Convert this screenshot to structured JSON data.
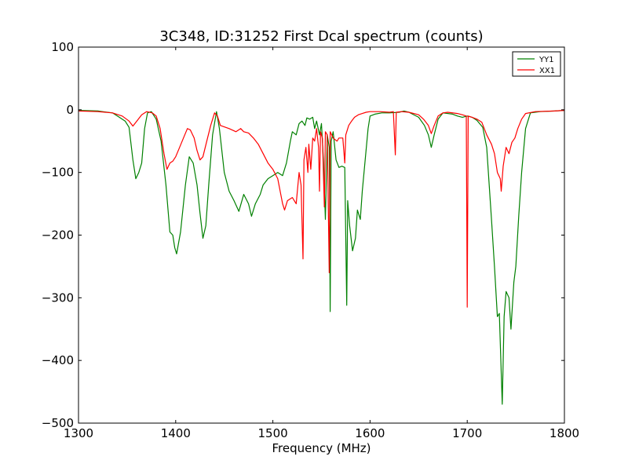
{
  "chart_data": {
    "type": "line",
    "title": "3C348, ID:31252 First Dcal spectrum (counts)",
    "xlabel": "Frequency (MHz)",
    "ylabel": "",
    "xlim": [
      1300,
      1800
    ],
    "ylim": [
      -500,
      100
    ],
    "x_ticks": [
      1300,
      1400,
      1500,
      1600,
      1700,
      1800
    ],
    "y_ticks": [
      -500,
      -400,
      -300,
      -200,
      -100,
      0,
      100
    ],
    "x_tick_labels": [
      "1300",
      "1400",
      "1500",
      "1600",
      "1700",
      "1800"
    ],
    "y_tick_labels": [
      "−500",
      "−400",
      "−300",
      "−200",
      "−100",
      "0",
      "100"
    ],
    "grid": false,
    "legend_position": "top-right",
    "series": [
      {
        "name": "YY1",
        "color": "#008000",
        "points": [
          [
            1300,
            -1
          ],
          [
            1320,
            -2
          ],
          [
            1335,
            -5
          ],
          [
            1342,
            -12
          ],
          [
            1348,
            -18
          ],
          [
            1352,
            -28
          ],
          [
            1356,
            -80
          ],
          [
            1359,
            -110
          ],
          [
            1362,
            -100
          ],
          [
            1365,
            -85
          ],
          [
            1368,
            -30
          ],
          [
            1371,
            -5
          ],
          [
            1375,
            -3
          ],
          [
            1380,
            -15
          ],
          [
            1385,
            -50
          ],
          [
            1390,
            -120
          ],
          [
            1394,
            -195
          ],
          [
            1397,
            -200
          ],
          [
            1399,
            -220
          ],
          [
            1401,
            -230
          ],
          [
            1405,
            -195
          ],
          [
            1410,
            -120
          ],
          [
            1414,
            -75
          ],
          [
            1418,
            -85
          ],
          [
            1422,
            -120
          ],
          [
            1425,
            -165
          ],
          [
            1428,
            -205
          ],
          [
            1431,
            -185
          ],
          [
            1434,
            -120
          ],
          [
            1438,
            -40
          ],
          [
            1442,
            -3
          ],
          [
            1445,
            -30
          ],
          [
            1450,
            -100
          ],
          [
            1455,
            -130
          ],
          [
            1460,
            -145
          ],
          [
            1465,
            -162
          ],
          [
            1470,
            -135
          ],
          [
            1475,
            -150
          ],
          [
            1478,
            -170
          ],
          [
            1482,
            -150
          ],
          [
            1487,
            -135
          ],
          [
            1490,
            -120
          ],
          [
            1495,
            -110
          ],
          [
            1500,
            -105
          ],
          [
            1505,
            -100
          ],
          [
            1510,
            -105
          ],
          [
            1514,
            -85
          ],
          [
            1518,
            -50
          ],
          [
            1520,
            -35
          ],
          [
            1524,
            -40
          ],
          [
            1527,
            -22
          ],
          [
            1530,
            -18
          ],
          [
            1533,
            -25
          ],
          [
            1535,
            -13
          ],
          [
            1538,
            -15
          ],
          [
            1541,
            -12
          ],
          [
            1543,
            -30
          ],
          [
            1545,
            -18
          ],
          [
            1548,
            -40
          ],
          [
            1550,
            -22
          ],
          [
            1552,
            -80
          ],
          [
            1554,
            -175
          ],
          [
            1556,
            -40
          ],
          [
            1558,
            -60
          ],
          [
            1559,
            -322
          ],
          [
            1560,
            -50
          ],
          [
            1562,
            -35
          ],
          [
            1565,
            -80
          ],
          [
            1568,
            -92
          ],
          [
            1571,
            -90
          ],
          [
            1574,
            -92
          ],
          [
            1576,
            -312
          ],
          [
            1577,
            -145
          ],
          [
            1579,
            -185
          ],
          [
            1582,
            -225
          ],
          [
            1585,
            -205
          ],
          [
            1587,
            -160
          ],
          [
            1590,
            -175
          ],
          [
            1592,
            -130
          ],
          [
            1595,
            -80
          ],
          [
            1598,
            -30
          ],
          [
            1600,
            -10
          ],
          [
            1605,
            -7
          ],
          [
            1612,
            -5
          ],
          [
            1620,
            -5
          ],
          [
            1630,
            -4
          ],
          [
            1635,
            -2
          ],
          [
            1640,
            -4
          ],
          [
            1650,
            -12
          ],
          [
            1656,
            -25
          ],
          [
            1660,
            -40
          ],
          [
            1663,
            -60
          ],
          [
            1666,
            -40
          ],
          [
            1670,
            -15
          ],
          [
            1675,
            -5
          ],
          [
            1685,
            -7
          ],
          [
            1690,
            -10
          ],
          [
            1695,
            -12
          ],
          [
            1700,
            -10
          ],
          [
            1705,
            -12
          ],
          [
            1710,
            -17
          ],
          [
            1716,
            -28
          ],
          [
            1720,
            -60
          ],
          [
            1725,
            -175
          ],
          [
            1728,
            -250
          ],
          [
            1731,
            -330
          ],
          [
            1733,
            -325
          ],
          [
            1736,
            -470
          ],
          [
            1738,
            -330
          ],
          [
            1740,
            -290
          ],
          [
            1743,
            -300
          ],
          [
            1745,
            -350
          ],
          [
            1748,
            -275
          ],
          [
            1750,
            -250
          ],
          [
            1753,
            -170
          ],
          [
            1756,
            -100
          ],
          [
            1760,
            -30
          ],
          [
            1765,
            -5
          ],
          [
            1775,
            -3
          ],
          [
            1790,
            -2
          ],
          [
            1800,
            -1
          ]
        ]
      },
      {
        "name": "XX1",
        "color": "#ff0000",
        "points": [
          [
            1300,
            -2
          ],
          [
            1320,
            -3
          ],
          [
            1335,
            -5
          ],
          [
            1345,
            -10
          ],
          [
            1352,
            -18
          ],
          [
            1356,
            -26
          ],
          [
            1360,
            -18
          ],
          [
            1365,
            -8
          ],
          [
            1370,
            -3
          ],
          [
            1376,
            -5
          ],
          [
            1380,
            -10
          ],
          [
            1384,
            -30
          ],
          [
            1388,
            -70
          ],
          [
            1391,
            -95
          ],
          [
            1394,
            -85
          ],
          [
            1397,
            -82
          ],
          [
            1400,
            -75
          ],
          [
            1404,
            -60
          ],
          [
            1408,
            -45
          ],
          [
            1412,
            -30
          ],
          [
            1415,
            -32
          ],
          [
            1419,
            -45
          ],
          [
            1422,
            -65
          ],
          [
            1425,
            -80
          ],
          [
            1428,
            -75
          ],
          [
            1432,
            -50
          ],
          [
            1436,
            -25
          ],
          [
            1440,
            -5
          ],
          [
            1443,
            -10
          ],
          [
            1446,
            -25
          ],
          [
            1455,
            -30
          ],
          [
            1462,
            -35
          ],
          [
            1467,
            -30
          ],
          [
            1470,
            -35
          ],
          [
            1475,
            -37
          ],
          [
            1480,
            -45
          ],
          [
            1485,
            -55
          ],
          [
            1490,
            -70
          ],
          [
            1495,
            -85
          ],
          [
            1500,
            -95
          ],
          [
            1505,
            -110
          ],
          [
            1510,
            -150
          ],
          [
            1512,
            -160
          ],
          [
            1515,
            -145
          ],
          [
            1520,
            -140
          ],
          [
            1524,
            -150
          ],
          [
            1527,
            -100
          ],
          [
            1529,
            -120
          ],
          [
            1531,
            -238
          ],
          [
            1532,
            -80
          ],
          [
            1534,
            -60
          ],
          [
            1536,
            -100
          ],
          [
            1537,
            -55
          ],
          [
            1539,
            -95
          ],
          [
            1541,
            -45
          ],
          [
            1543,
            -50
          ],
          [
            1545,
            -30
          ],
          [
            1547,
            -60
          ],
          [
            1548,
            -130
          ],
          [
            1549,
            -35
          ],
          [
            1551,
            -45
          ],
          [
            1553,
            -155
          ],
          [
            1554,
            -35
          ],
          [
            1556,
            -40
          ],
          [
            1558,
            -260
          ],
          [
            1559,
            -35
          ],
          [
            1562,
            -45
          ],
          [
            1566,
            -50
          ],
          [
            1568,
            -45
          ],
          [
            1572,
            -45
          ],
          [
            1574,
            -85
          ],
          [
            1575,
            -40
          ],
          [
            1578,
            -25
          ],
          [
            1581,
            -18
          ],
          [
            1584,
            -12
          ],
          [
            1588,
            -8
          ],
          [
            1592,
            -6
          ],
          [
            1596,
            -4
          ],
          [
            1600,
            -3
          ],
          [
            1610,
            -3
          ],
          [
            1620,
            -4
          ],
          [
            1624,
            -3
          ],
          [
            1626,
            -72
          ],
          [
            1627,
            -4
          ],
          [
            1632,
            -3
          ],
          [
            1640,
            -4
          ],
          [
            1650,
            -8
          ],
          [
            1655,
            -15
          ],
          [
            1660,
            -25
          ],
          [
            1663,
            -38
          ],
          [
            1666,
            -25
          ],
          [
            1670,
            -10
          ],
          [
            1675,
            -5
          ],
          [
            1680,
            -4
          ],
          [
            1690,
            -6
          ],
          [
            1695,
            -8
          ],
          [
            1699,
            -10
          ],
          [
            1700,
            -315
          ],
          [
            1701,
            -10
          ],
          [
            1705,
            -12
          ],
          [
            1710,
            -15
          ],
          [
            1715,
            -20
          ],
          [
            1720,
            -40
          ],
          [
            1725,
            -55
          ],
          [
            1728,
            -70
          ],
          [
            1731,
            -100
          ],
          [
            1734,
            -110
          ],
          [
            1735,
            -130
          ],
          [
            1737,
            -90
          ],
          [
            1740,
            -60
          ],
          [
            1743,
            -70
          ],
          [
            1746,
            -52
          ],
          [
            1749,
            -45
          ],
          [
            1752,
            -30
          ],
          [
            1756,
            -15
          ],
          [
            1760,
            -6
          ],
          [
            1770,
            -3
          ],
          [
            1790,
            -2
          ],
          [
            1800,
            -1
          ]
        ]
      }
    ]
  }
}
